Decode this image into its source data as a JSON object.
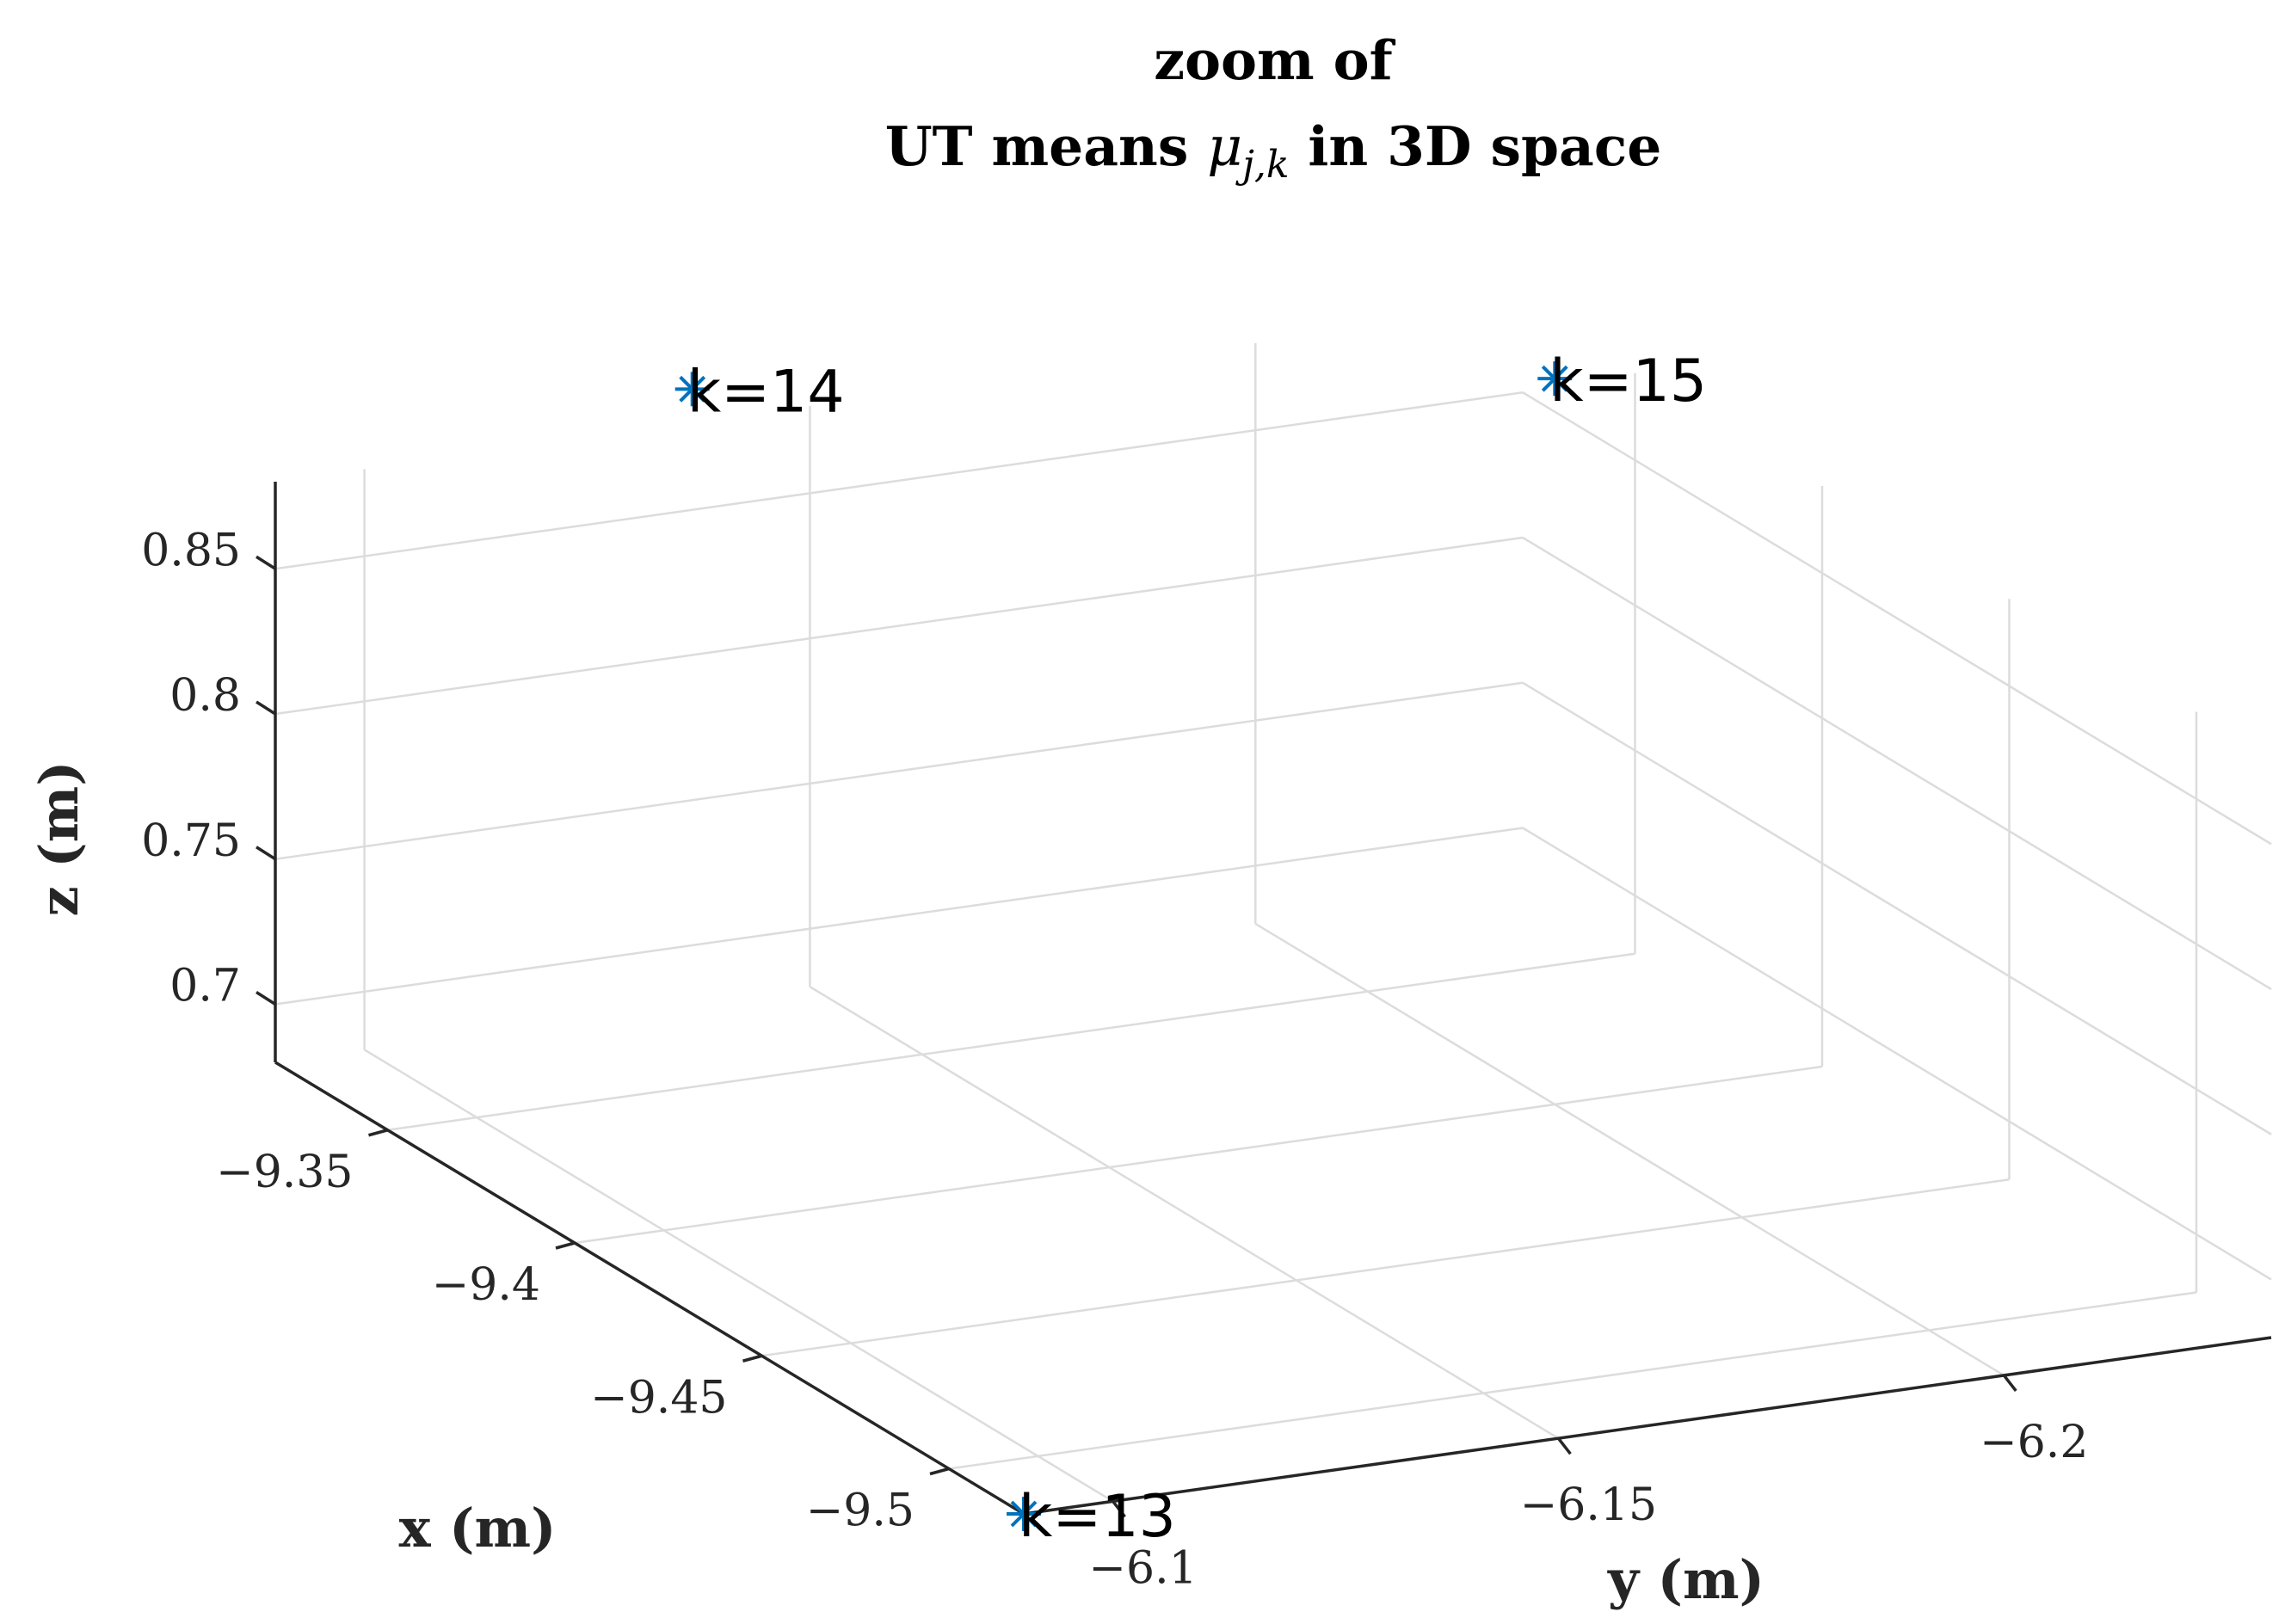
{
  "chart_data": {
    "type": "scatter",
    "title_line1": "zoom of",
    "title_line2_prefix": "UT means ",
    "title_line2_symbol": "μ",
    "title_line2_subscript": "j,k",
    "title_line2_suffix": " in 3D space",
    "xlabel": "x (m)",
    "ylabel": "y (m)",
    "zlabel": "z (m)",
    "xlim": [
      -9.52,
      -9.32
    ],
    "ylim": [
      -6.09,
      -6.23
    ],
    "zlim": [
      0.68,
      0.88
    ],
    "x_ticks": [
      -9.35,
      -9.4,
      -9.45,
      -9.5
    ],
    "x_tick_labels": [
      "−9.35",
      "−9.4",
      "−9.45",
      "−9.5"
    ],
    "y_ticks": [
      -6.1,
      -6.15,
      -6.2
    ],
    "y_tick_labels": [
      "−6.1",
      "−6.15",
      "−6.2"
    ],
    "z_ticks": [
      0.7,
      0.75,
      0.8,
      0.85
    ],
    "z_tick_labels": [
      "0.7",
      "0.75",
      "0.8",
      "0.85"
    ],
    "grid": true,
    "marker": "asterisk",
    "marker_color": "#0072BD",
    "points": [
      {
        "label": "k=13",
        "x": -9.52,
        "y": -6.09,
        "z": 0.68
      },
      {
        "label": "k=14",
        "x": -9.36,
        "y": -6.12,
        "z": 0.93
      },
      {
        "label": "k=15",
        "x": -9.4,
        "y": -6.2,
        "z": 0.93
      }
    ]
  }
}
